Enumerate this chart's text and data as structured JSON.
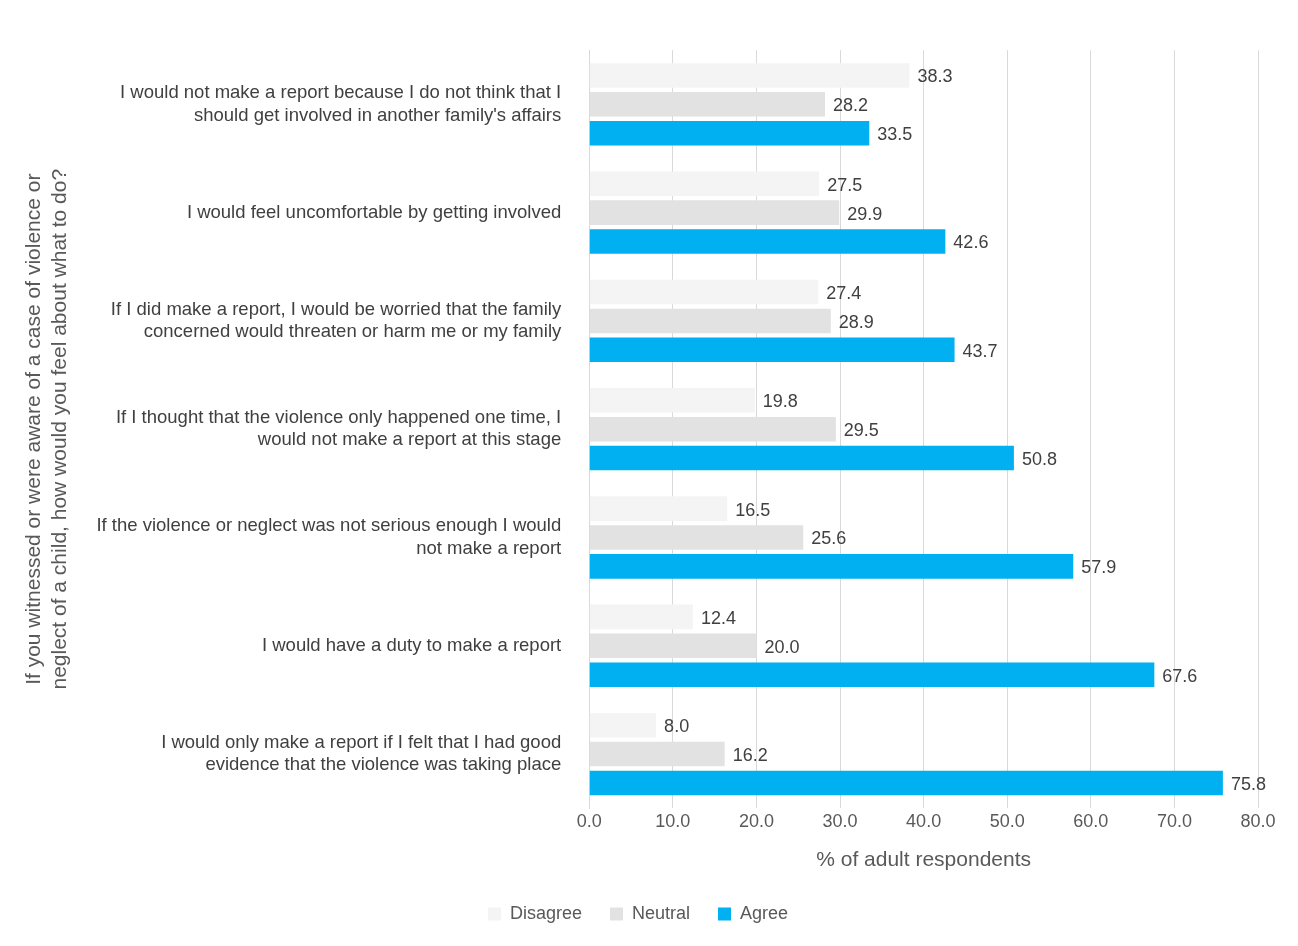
{
  "chart_data": {
    "type": "bar",
    "orientation": "horizontal",
    "xlabel": "% of adult respondents",
    "ylabel": "If you witnessed or were aware of a case of violence or neglect of a child, how would you feel about what to do?",
    "categories": [
      "I would not make a report because I do not think that I should get involved in another family's affairs",
      "I would feel uncomfortable by getting involved",
      "If I did make a report, I would be worried that the family concerned would threaten or harm me or my family",
      "If I thought that the violence only happened one time, I would not make a report at this stage",
      "If the violence or neglect was not serious enough I would not make a report",
      "I would have a duty to make a report",
      "I would only make a report if I felt that I had good evidence that the violence was taking place"
    ],
    "series": [
      {
        "name": "Disagree",
        "color": "#f4f4f4",
        "values": [
          38.3,
          27.5,
          27.4,
          19.8,
          16.5,
          12.4,
          8.0
        ],
        "value_labels": [
          "38.3",
          "27.5",
          "27.4",
          "19.8",
          "16.5",
          "12.4",
          "8.0"
        ]
      },
      {
        "name": "Neutral",
        "color": "#e2e2e2",
        "values": [
          28.2,
          29.9,
          28.9,
          29.5,
          25.6,
          20.0,
          16.2
        ],
        "value_labels": [
          "28.2",
          "29.9",
          "28.9",
          "29.5",
          "25.6",
          "20.0",
          "16.2"
        ]
      },
      {
        "name": "Agree",
        "color": "#00b0f0",
        "values": [
          33.5,
          42.6,
          43.7,
          50.8,
          57.9,
          67.6,
          75.8
        ],
        "value_labels": [
          "33.5",
          "42.6",
          "43.7",
          "50.8",
          "57.9",
          "67.6",
          "75.8"
        ]
      }
    ],
    "xlim": [
      0,
      80
    ],
    "xticks": [
      {
        "value": 0,
        "label": "0.0"
      },
      {
        "value": 10,
        "label": "10.0"
      },
      {
        "value": 20,
        "label": "20.0"
      },
      {
        "value": 30,
        "label": "30.0"
      },
      {
        "value": 40,
        "label": "40.0"
      },
      {
        "value": 50,
        "label": "50.0"
      },
      {
        "value": 60,
        "label": "60.0"
      },
      {
        "value": 70,
        "label": "70.0"
      },
      {
        "value": 80,
        "label": "80.0"
      }
    ],
    "grid": "x",
    "legend": "bottom"
  }
}
